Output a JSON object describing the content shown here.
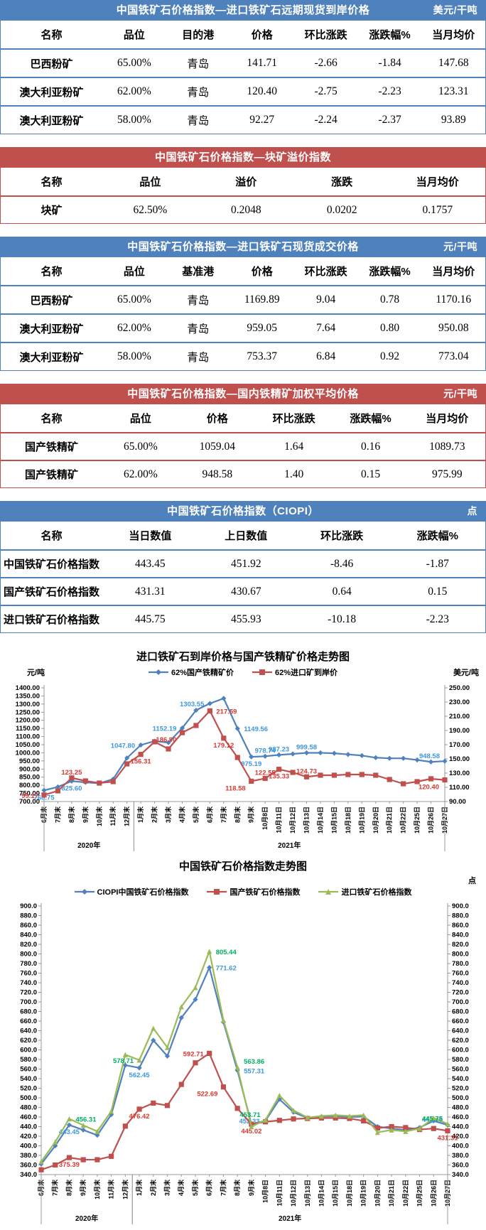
{
  "tables": [
    {
      "title": "中国铁矿石价格指数—进口铁矿石远期现货到岸价格",
      "unit": "美元/干吨",
      "theme": "blue",
      "headers": [
        "名称",
        "品位",
        "目的港",
        "价格",
        "环比涨跌",
        "涨跌幅%",
        "当月均价"
      ],
      "rows": [
        [
          "巴西粉矿",
          "65.00%",
          "青岛",
          "141.71",
          "-2.66",
          "-1.84",
          "147.68"
        ],
        [
          "澳大利亚粉矿",
          "62.00%",
          "青岛",
          "120.40",
          "-2.75",
          "-2.23",
          "123.31"
        ],
        [
          "澳大利亚粉矿",
          "58.00%",
          "青岛",
          "92.27",
          "-2.24",
          "-2.37",
          "93.89"
        ]
      ]
    },
    {
      "title": "中国铁矿石价格指数—块矿溢价指数",
      "unit": "",
      "theme": "red",
      "headers": [
        "名称",
        "品位",
        "溢价",
        "涨跌",
        "当月均价"
      ],
      "rows": [
        [
          "块矿",
          "62.50%",
          "0.2048",
          "0.0202",
          "0.1757"
        ]
      ]
    },
    {
      "title": "中国铁矿石价格指数—进口铁矿石现货成交价格",
      "unit": "元/干吨",
      "theme": "blue",
      "headers": [
        "名称",
        "品位",
        "基准港",
        "价格",
        "环比涨跌",
        "涨跌幅%",
        "当月均价"
      ],
      "rows": [
        [
          "巴西粉矿",
          "65.00%",
          "青岛",
          "1169.89",
          "9.04",
          "0.78",
          "1170.16"
        ],
        [
          "澳大利亚粉矿",
          "62.00%",
          "青岛",
          "959.05",
          "7.64",
          "0.80",
          "950.08"
        ],
        [
          "澳大利亚粉矿",
          "58.00%",
          "青岛",
          "753.37",
          "6.84",
          "0.92",
          "773.04"
        ]
      ]
    },
    {
      "title": "中国铁矿石价格指数—国内铁精矿加权平均价格",
      "unit": "元/干吨",
      "theme": "red",
      "headers": [
        "名称",
        "品位",
        "价格",
        "环比涨跌",
        "涨跌幅%",
        "当月均价"
      ],
      "rows": [
        [
          "国产铁精矿",
          "65.00%",
          "1059.04",
          "1.64",
          "0.16",
          "1089.73"
        ],
        [
          "国产铁精矿",
          "62.00%",
          "948.58",
          "1.40",
          "0.15",
          "975.99"
        ]
      ]
    },
    {
      "title": "中国铁矿石价格指数（CIOPI）",
      "unit": "点",
      "theme": "blue",
      "headers": [
        "名称",
        "当日数值",
        "上日数值",
        "环比涨跌",
        "涨跌幅%"
      ],
      "rows": [
        [
          "中国铁矿石价格指数",
          "443.45",
          "451.92",
          "-8.46",
          "-1.87"
        ],
        [
          "国产铁矿石价格指数",
          "431.31",
          "430.67",
          "0.64",
          "0.15"
        ],
        [
          "进口铁矿石价格指数",
          "445.75",
          "455.93",
          "-10.18",
          "-2.23"
        ]
      ]
    }
  ],
  "chart_data": [
    {
      "type": "line",
      "title": "进口铁矿石到岸价格与国产铁精矿价格走势图",
      "left_axis": {
        "label": "元/吨",
        "min": 700,
        "max": 1400,
        "step": 50,
        "decimals": 2
      },
      "right_axis": {
        "label": "美元/吨",
        "min": 90,
        "max": 250,
        "step": 20,
        "decimals": 2
      },
      "categories": [
        "6月末",
        "7月末",
        "8月末",
        "9月末",
        "10月末",
        "11月末",
        "12月末",
        "1月末",
        "2月末",
        "3月末",
        "4月末",
        "5月末",
        "6月末",
        "7月末",
        "8月末",
        "9月末",
        "10月8日",
        "10月11日",
        "10月12日",
        "10月13日",
        "10月14日",
        "10月15日",
        "10月18日",
        "10月19日",
        "10月20日",
        "10月21日",
        "10月22日",
        "10月25日",
        "10月26日",
        "10月27日"
      ],
      "year_groups": [
        {
          "label": "2020年",
          "from": 0,
          "to": 6
        },
        {
          "label": "2021年",
          "from": 7,
          "to": 29
        }
      ],
      "grid": false,
      "legend_position": "top",
      "series": [
        {
          "name": "62%国产铁精矿价",
          "color": "#4F81BD",
          "label_color": "#3E97DF",
          "marker": "diamond",
          "axis": "left",
          "values": [
            768.75,
            790,
            825.6,
            818,
            812,
            838,
            968,
            1047.8,
            1072,
            1063,
            1152.19,
            1262,
            1303.55,
            1335,
            1149.56,
            975.19,
            978.74,
            987.23,
            993,
            999.58,
            1000,
            997,
            990,
            983,
            970,
            966,
            966,
            956,
            944,
            948.58
          ],
          "point_labels": [
            {
              "i": 0,
              "v": "768.75",
              "p": "b"
            },
            {
              "i": 2,
              "v": "825.60",
              "p": "b"
            },
            {
              "i": 7,
              "v": "1047.80",
              "p": "l"
            },
            {
              "i": 10,
              "v": "1152.19",
              "p": "l"
            },
            {
              "i": 12,
              "v": "1303.55",
              "p": "l"
            },
            {
              "i": 14,
              "v": "1149.56",
              "p": "r"
            },
            {
              "i": 15,
              "v": "975.19",
              "p": "b"
            },
            {
              "i": 16,
              "v": "978.74",
              "p": "a"
            },
            {
              "i": 17,
              "v": "987.23",
              "p": "a"
            },
            {
              "i": 19,
              "v": "999.58",
              "p": "a"
            },
            {
              "i": 29,
              "v": "948.58",
              "p": "al"
            }
          ]
        },
        {
          "name": "62%进口矿到岸价",
          "color": "#C0504D",
          "label_color": "#D83931",
          "marker": "square",
          "axis": "right",
          "values": [
            99.17,
            105,
            123.25,
            119,
            116,
            118,
            143,
            156.31,
            174,
            164,
            186.9,
            197,
            217.59,
            179.12,
            152,
            118.58,
            122.55,
            135.33,
            131,
            124.73,
            127,
            127,
            128,
            128,
            127,
            121,
            115,
            118,
            122,
            120.4
          ],
          "point_labels": [
            {
              "i": 0,
              "v": "99.17",
              "p": "l"
            },
            {
              "i": 2,
              "v": "123.25",
              "p": "a"
            },
            {
              "i": 7,
              "v": "156.31",
              "p": "b"
            },
            {
              "i": 10,
              "v": "186.90",
              "p": "bl"
            },
            {
              "i": 12,
              "v": "217.59",
              "p": "r"
            },
            {
              "i": 13,
              "v": "179.12",
              "p": "b"
            },
            {
              "i": 15,
              "v": "118.58",
              "p": "bl"
            },
            {
              "i": 16,
              "v": "122.55",
              "p": "a"
            },
            {
              "i": 17,
              "v": "135.33",
              "p": "b"
            },
            {
              "i": 19,
              "v": "124.73",
              "p": "a"
            },
            {
              "i": 29,
              "v": "120.40",
              "p": "bl"
            }
          ]
        }
      ]
    },
    {
      "type": "line",
      "title": "中国铁矿石价格指数走势图",
      "unit": "点",
      "left_axis": {
        "label": "",
        "min": 340,
        "max": 900,
        "step": 20,
        "decimals": 1
      },
      "right_axis": {
        "label": "",
        "min": 340,
        "max": 900,
        "step": 20,
        "decimals": 1
      },
      "categories": [
        "6月末",
        "7月末",
        "8月末",
        "9月末",
        "10月末",
        "11月末",
        "12月末",
        "1月末",
        "2月末",
        "3月末",
        "4月末",
        "5月末",
        "6月末",
        "7月末",
        "8月末",
        "9月末",
        "10月8日",
        "10月11日",
        "10月12日",
        "10月13日",
        "10月14日",
        "10月15日",
        "10月18日",
        "10月19日",
        "10月20日",
        "10月21日",
        "10月22日",
        "10月25日",
        "10月26日",
        "10月27日"
      ],
      "year_groups": [
        {
          "label": "2020年",
          "from": 0,
          "to": 6
        },
        {
          "label": "2021年",
          "from": 7,
          "to": 29
        }
      ],
      "grid": false,
      "legend_position": "top",
      "series": [
        {
          "name": "CIOPI中国铁矿石价格指数",
          "color": "#4F81BD",
          "label_color": "#3E97DF",
          "marker": "diamond",
          "axis": "left",
          "values": [
            362,
            400,
            443.45,
            433,
            422,
            465,
            568,
            562.45,
            620,
            587,
            667,
            705,
            771.62,
            658,
            557.31,
            445,
            452.33,
            497,
            470,
            458,
            461,
            462,
            460,
            461,
            440,
            436,
            433,
            438,
            452,
            443.45
          ],
          "point_labels": [
            {
              "i": 2,
              "v": "443.45",
              "p": "b"
            },
            {
              "i": 7,
              "v": "562.45",
              "p": "b"
            },
            {
              "i": 12,
              "v": "771.62",
              "p": "r"
            },
            {
              "i": 14,
              "v": "557.31",
              "p": "r"
            },
            {
              "i": 16,
              "v": "452.33",
              "p": "l"
            },
            {
              "i": 29,
              "v": "443.45",
              "p": "al"
            }
          ]
        },
        {
          "name": "国产铁矿石价格指数",
          "color": "#C0504D",
          "label_color": "#D83931",
          "marker": "square",
          "axis": "left",
          "values": [
            350,
            360,
            375.39,
            371,
            371,
            378,
            441,
            476.42,
            489,
            484,
            528,
            573,
            592.71,
            522.69,
            478,
            445.02,
            450,
            453,
            456,
            457,
            458,
            458,
            457,
            452,
            437,
            440,
            438,
            434,
            436,
            431.31
          ],
          "point_labels": [
            {
              "i": 2,
              "v": "375.39",
              "p": "b"
            },
            {
              "i": 7,
              "v": "476.42",
              "p": "b"
            },
            {
              "i": 12,
              "v": "592.71",
              "p": "l"
            },
            {
              "i": 13,
              "v": "522.69",
              "p": "bl"
            },
            {
              "i": 15,
              "v": "445.02",
              "p": "b"
            },
            {
              "i": 29,
              "v": "431.31",
              "p": "b"
            }
          ]
        },
        {
          "name": "进口铁矿石价格指数",
          "color": "#9BBB59",
          "label_color": "#00B061",
          "marker": "triangle",
          "axis": "left",
          "values": [
            367,
            408,
            456.31,
            443,
            430,
            472,
            590,
            578.71,
            645,
            605,
            690,
            730,
            805.44,
            662,
            563.86,
            440,
            453.71,
            505,
            474,
            459,
            462,
            464,
            462,
            464,
            428,
            433,
            430,
            436,
            458,
            445.75
          ],
          "point_labels": [
            {
              "i": 2,
              "v": "456.31",
              "p": "r"
            },
            {
              "i": 7,
              "v": "578.71",
              "p": "l"
            },
            {
              "i": 12,
              "v": "805.44",
              "p": "r"
            },
            {
              "i": 14,
              "v": "563.86",
              "p": "ar"
            },
            {
              "i": 16,
              "v": "453.71",
              "p": "al"
            },
            {
              "i": 29,
              "v": "445.75",
              "p": "al"
            }
          ]
        }
      ]
    }
  ]
}
